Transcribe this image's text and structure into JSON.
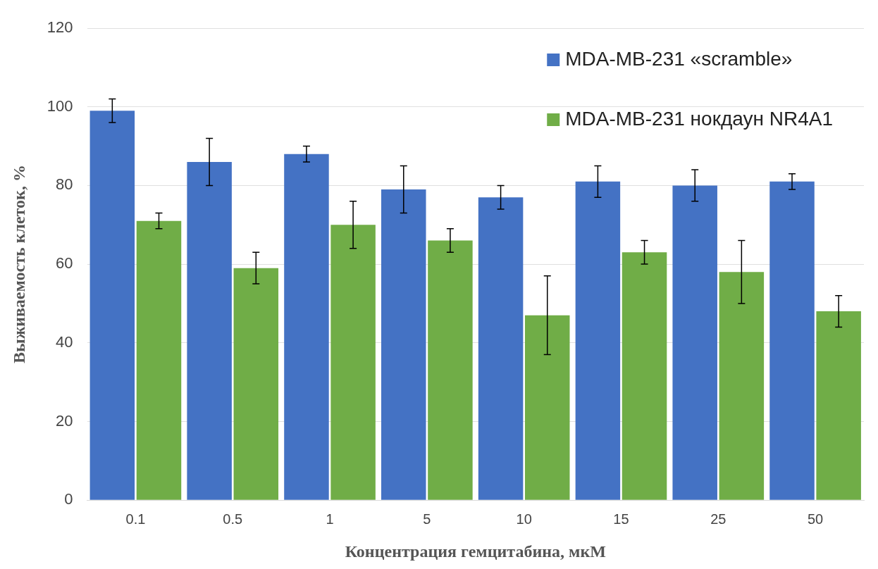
{
  "chart_data": {
    "type": "bar",
    "xlabel": "Концентрация гемцитабина, мкМ",
    "ylabel": "Выживаемость клеток, %",
    "categories": [
      "0.1",
      "0.5",
      "1",
      "5",
      "10",
      "15",
      "25",
      "50"
    ],
    "series": [
      {
        "name": "MDA-MB-231 «scramble»",
        "color": "#4472c4",
        "values": [
          99,
          86,
          88,
          79,
          77,
          81,
          80,
          81
        ],
        "errors": [
          3,
          6,
          2,
          6,
          3,
          4,
          4,
          2
        ]
      },
      {
        "name": "MDA-MB-231 нокдаун NR4A1",
        "color": "#70ad47",
        "values": [
          71,
          59,
          70,
          66,
          47,
          63,
          58,
          48
        ],
        "errors": [
          2,
          4,
          6,
          3,
          10,
          3,
          8,
          4
        ]
      }
    ],
    "ylim": [
      0,
      120
    ],
    "yticks": [
      0,
      20,
      40,
      60,
      80,
      100,
      120
    ],
    "grid": "y",
    "legend": "top right"
  }
}
